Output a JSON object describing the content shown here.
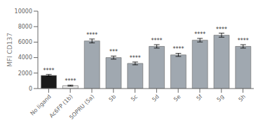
{
  "chart_data": {
    "type": "bar",
    "categories": [
      "No ligand",
      "Ac6FP (1b)",
      "5OPRU (5a)",
      "5b",
      "5c",
      "5d",
      "5e",
      "5f",
      "5g",
      "5h"
    ],
    "values": [
      1700,
      380,
      6150,
      4000,
      3250,
      5450,
      4350,
      6250,
      6900,
      5450
    ],
    "errors": [
      120,
      60,
      250,
      200,
      180,
      220,
      200,
      230,
      260,
      220
    ],
    "annotations": [
      "****",
      "****",
      "****",
      "***",
      "****",
      "****",
      "****",
      "****",
      "****",
      "****"
    ],
    "colors": [
      "#1a1a1a",
      "#e8e8e8",
      "#a0a8b0",
      "#a0a8b0",
      "#a0a8b0",
      "#a0a8b0",
      "#a0a8b0",
      "#a0a8b0",
      "#a0a8b0",
      "#a0a8b0"
    ],
    "ylabel": "MFI CD137",
    "ylim": [
      0,
      10000
    ],
    "yticks": [
      0,
      2000,
      4000,
      6000,
      8000,
      10000
    ],
    "grid": false
  }
}
